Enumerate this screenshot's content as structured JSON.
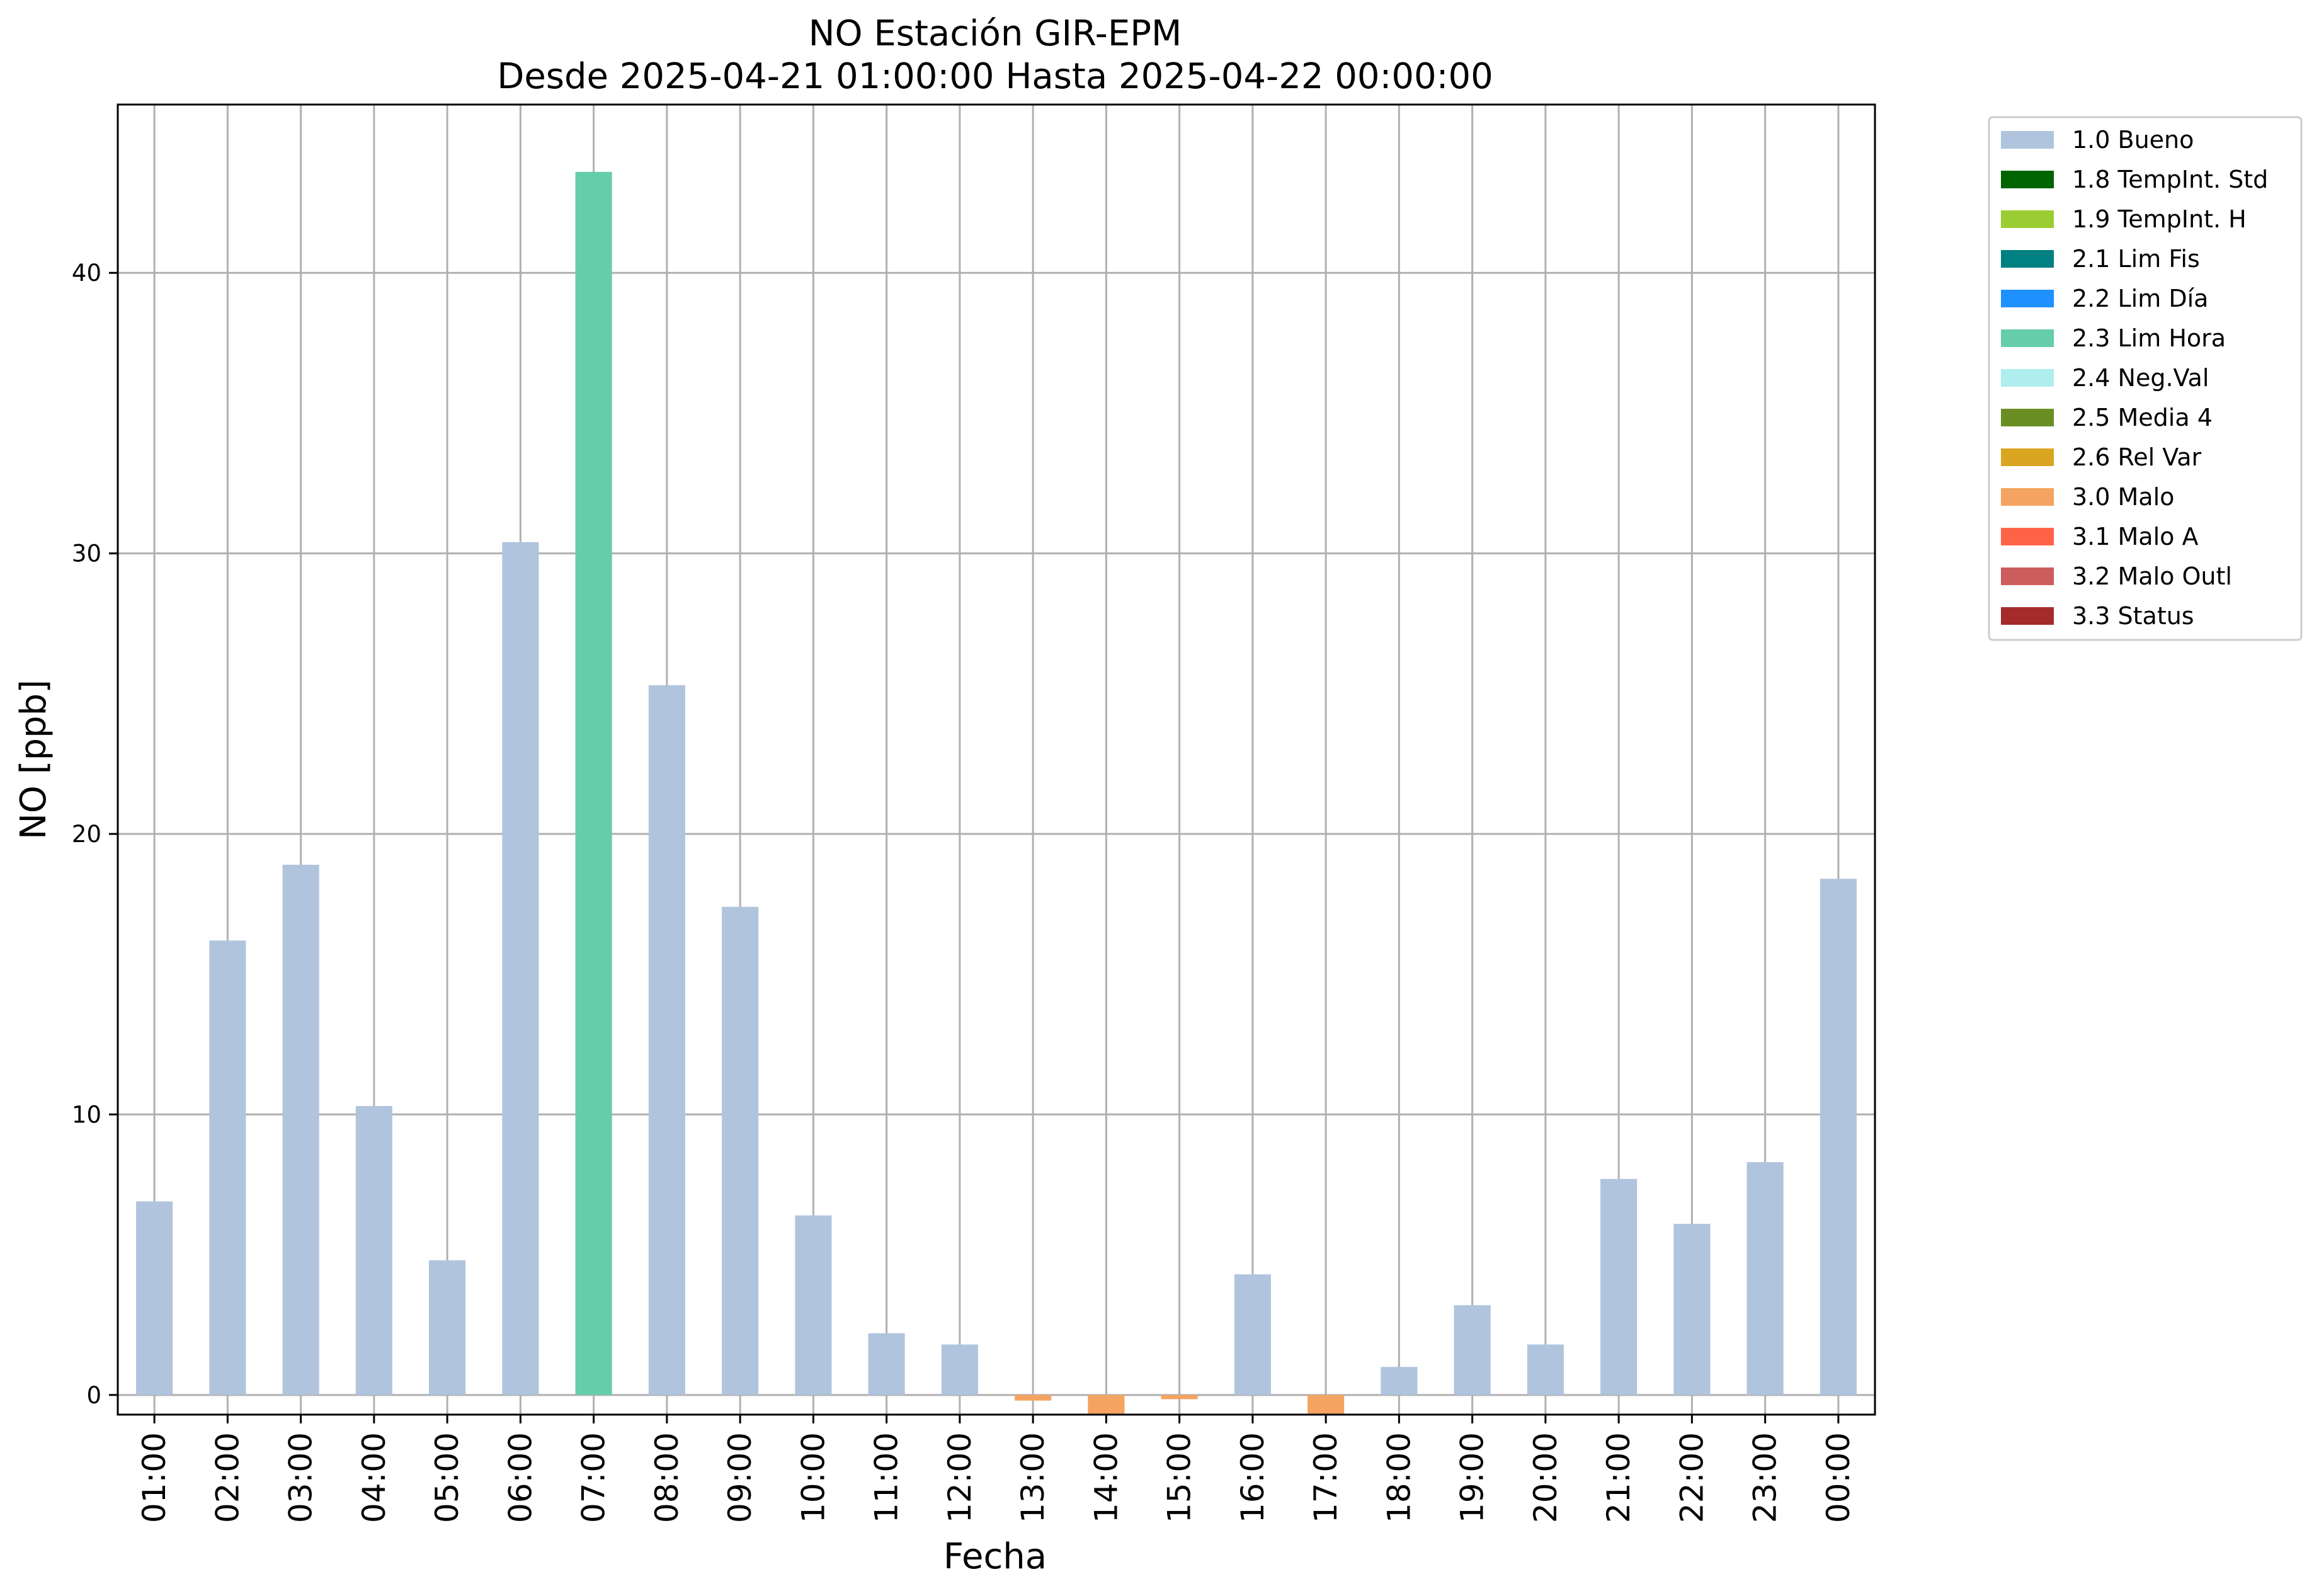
{
  "chart_data": {
    "type": "bar",
    "title": "NO Estación GIR-EPM",
    "subtitle": "Desde 2025-04-21 01:00:00 Hasta 2025-04-22 00:00:00",
    "xlabel": "Fecha",
    "ylabel": "NO [ppb]",
    "ylim": [
      -0.7,
      46
    ],
    "yticks": [
      0,
      10,
      20,
      30,
      40
    ],
    "grid": true,
    "legend_position": "outside-top-right",
    "categories": [
      "01:00",
      "02:00",
      "03:00",
      "04:00",
      "05:00",
      "06:00",
      "07:00",
      "08:00",
      "09:00",
      "10:00",
      "11:00",
      "12:00",
      "13:00",
      "14:00",
      "15:00",
      "16:00",
      "17:00",
      "18:00",
      "19:00",
      "20:00",
      "21:00",
      "22:00",
      "23:00",
      "00:00"
    ],
    "values": [
      6.9,
      16.2,
      18.9,
      10.3,
      4.8,
      30.4,
      43.6,
      25.3,
      17.4,
      6.4,
      2.2,
      1.8,
      -0.2,
      -0.7,
      -0.15,
      4.3,
      -0.7,
      1.0,
      3.2,
      1.8,
      7.7,
      6.1,
      8.3,
      18.4
    ],
    "flags": [
      "1.0 Bueno",
      "1.0 Bueno",
      "1.0 Bueno",
      "1.0 Bueno",
      "1.0 Bueno",
      "1.0 Bueno",
      "2.3 Lim Hora",
      "1.0 Bueno",
      "1.0 Bueno",
      "1.0 Bueno",
      "1.0 Bueno",
      "1.0 Bueno",
      "3.0 Malo",
      "3.0 Malo",
      "3.0 Malo",
      "1.0 Bueno",
      "3.0 Malo",
      "1.0 Bueno",
      "1.0 Bueno",
      "1.0 Bueno",
      "1.0 Bueno",
      "1.0 Bueno",
      "1.0 Bueno",
      "1.0 Bueno"
    ],
    "legend": [
      {
        "name": "1.0 Bueno",
        "color": "#b0c4de"
      },
      {
        "name": "1.8 TempInt. Std",
        "color": "#006400"
      },
      {
        "name": "1.9 TempInt. H",
        "color": "#9acd32"
      },
      {
        "name": "2.1 Lim Fis",
        "color": "#008080"
      },
      {
        "name": "2.2 Lim Día",
        "color": "#1e90ff"
      },
      {
        "name": "2.3 Lim Hora",
        "color": "#66cdaa"
      },
      {
        "name": "2.4 Neg.Val",
        "color": "#afeeee"
      },
      {
        "name": "2.5 Media 4",
        "color": "#6b8e23"
      },
      {
        "name": "2.6 Rel Var",
        "color": "#daa520"
      },
      {
        "name": "3.0 Malo",
        "color": "#f4a460"
      },
      {
        "name": "3.1 Malo A",
        "color": "#ff6347"
      },
      {
        "name": "3.2 Malo Outl",
        "color": "#cd5c5c"
      },
      {
        "name": "3.3 Status",
        "color": "#a52a2a"
      }
    ]
  }
}
